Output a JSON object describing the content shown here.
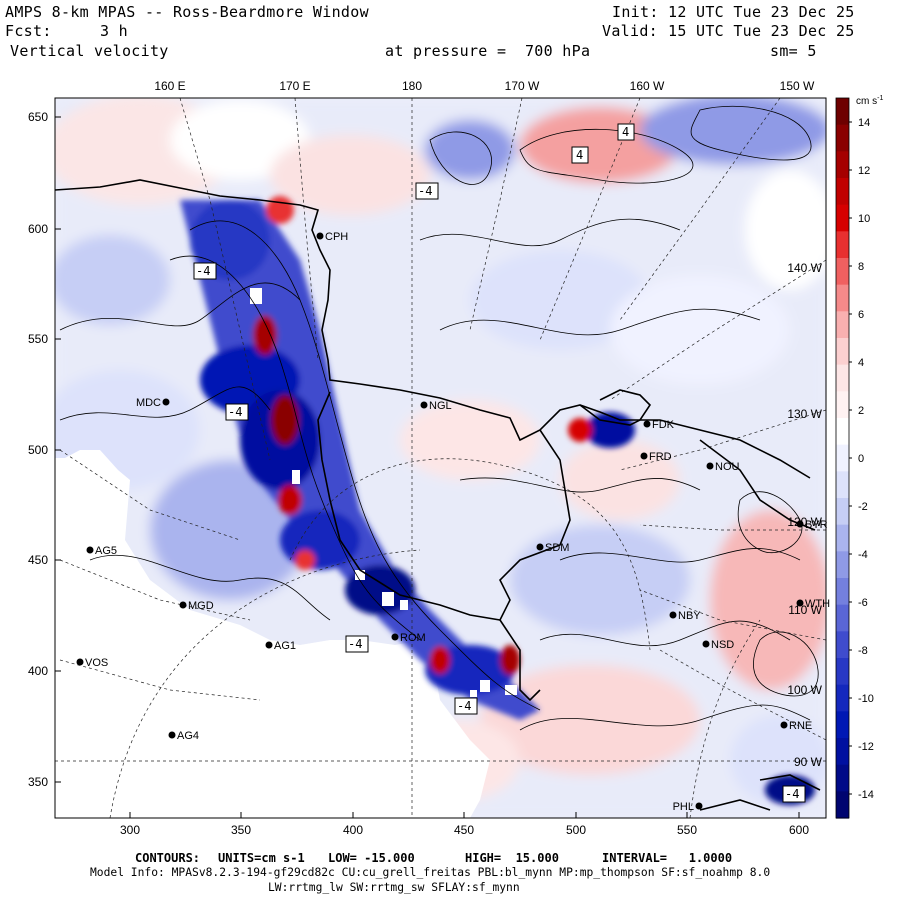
{
  "header": {
    "model": "AMPS 8-km MPAS -- Ross-Beardmore Window",
    "init_label": "Init:",
    "init_value": "12 UTC Tue 23 Dec 25",
    "fcst_label": "Fcst:",
    "fcst_value": "3 h",
    "valid_label": "Valid:",
    "valid_value": "15 UTC Tue 23 Dec 25",
    "field": "Vertical velocity",
    "pressure": "at pressure =  700 hPa",
    "smoothing": "sm= 5"
  },
  "axes": {
    "top_longitudes": [
      "160 E",
      "170 E",
      "180",
      "170 W",
      "160 W",
      "150 W"
    ],
    "x_ticks": [
      "300",
      "350",
      "400",
      "450",
      "500",
      "550",
      "600"
    ],
    "y_ticks": [
      "650",
      "600",
      "550",
      "500",
      "450",
      "400",
      "350"
    ],
    "inner_longitudes": [
      "140 W",
      "130 W",
      "120 W",
      "110 W",
      "100 W",
      "90 W"
    ]
  },
  "colorbar": {
    "units": "cm s-1",
    "labels": [
      "14",
      "12",
      "10",
      "8",
      "6",
      "4",
      "2",
      "0",
      "-2",
      "-4",
      "-6",
      "-8",
      "-10",
      "-12",
      "-14"
    ],
    "range": [
      -15,
      15
    ],
    "colors_top_to_bottom": [
      "#6e0000",
      "#8a0000",
      "#a50000",
      "#c00000",
      "#d60000",
      "#e83030",
      "#f06060",
      "#f58a8a",
      "#f9b0b0",
      "#fcd0d0",
      "#fde6e6",
      "#fff2f2",
      "#ffffff",
      "#f0f2ff",
      "#dde2fb",
      "#c6cef5",
      "#aab4ee",
      "#8f9ae6",
      "#7480de",
      "#5a66d6",
      "#3f4ccd",
      "#2838c4",
      "#1428bd",
      "#0018b4",
      "#0010a0",
      "#000a88",
      "#000470"
    ]
  },
  "stations": [
    {
      "id": "CPH"
    },
    {
      "id": "MDC"
    },
    {
      "id": "NGL"
    },
    {
      "id": "FDK"
    },
    {
      "id": "FRD"
    },
    {
      "id": "NOU"
    },
    {
      "id": "AG5"
    },
    {
      "id": "SDM"
    },
    {
      "id": "MGD"
    },
    {
      "id": "AG1"
    },
    {
      "id": "VOS"
    },
    {
      "id": "AG4"
    },
    {
      "id": "NBY"
    },
    {
      "id": "NSD"
    },
    {
      "id": "RNE"
    },
    {
      "id": "PHL"
    },
    {
      "id": "WTH"
    },
    {
      "id": "BYR"
    },
    {
      "id": "ROM"
    }
  ],
  "contour_labels": [
    "4",
    "4",
    "-4",
    "-4",
    "-4",
    "-4",
    "-4",
    "-4"
  ],
  "footer": {
    "contours_label": "CONTOURS:",
    "units": "UNITS=cm s-1",
    "low": "LOW= -15.000",
    "high": "HIGH=  15.000",
    "interval": "INTERVAL=   1.0000",
    "model_info": "Model Info: MPASv8.2.3-194-gf29cd82c CU:cu_grell_freitas PBL:bl_mynn MP:mp_thompson SF:sf_noahmp 8.0",
    "model_info2": "LW:rrtmg_lw SW:rrtmg_sw SFLAY:sf_mynn"
  }
}
